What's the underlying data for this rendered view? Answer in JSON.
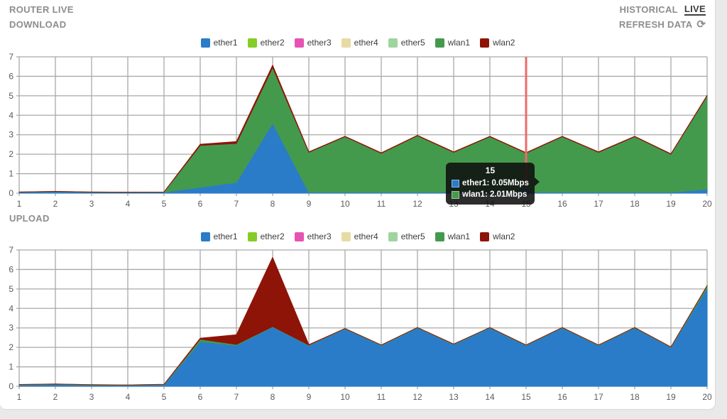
{
  "header": {
    "title": "ROUTER LIVE",
    "mode_historical": "HISTORICAL",
    "mode_live": "LIVE",
    "refresh_label": "REFRESH DATA",
    "refresh_icon": "⟳"
  },
  "sections": {
    "download_label": "DOWNLOAD",
    "upload_label": "UPLOAD"
  },
  "legend": [
    {
      "label": "ether1",
      "color": "#2a7cc8"
    },
    {
      "label": "ether2",
      "color": "#85cc26"
    },
    {
      "label": "ether3",
      "color": "#e753b4"
    },
    {
      "label": "ether4",
      "color": "#e6dba4"
    },
    {
      "label": "ether5",
      "color": "#9fd49e"
    },
    {
      "label": "wlan1",
      "color": "#449a4c"
    },
    {
      "label": "wlan2",
      "color": "#8e1408"
    }
  ],
  "tooltip": {
    "title": "15",
    "rows": [
      {
        "label": "ether1: 0.05Mbps",
        "color": "#2a7cc8"
      },
      {
        "label": "wlan1: 2.01Mbps",
        "color": "#449a4c"
      }
    ]
  },
  "chart_data": [
    {
      "type": "area",
      "stacked": true,
      "title": "DOWNLOAD",
      "xlabel": "",
      "ylabel": "",
      "x": [
        1,
        2,
        3,
        4,
        5,
        6,
        7,
        8,
        9,
        10,
        11,
        12,
        13,
        14,
        15,
        16,
        17,
        18,
        19,
        20
      ],
      "ylim": [
        0,
        7
      ],
      "yticks": [
        0,
        1,
        2,
        3,
        4,
        5,
        6,
        7
      ],
      "grid": true,
      "legend_position": "top-center",
      "series": [
        {
          "name": "ether1",
          "color": "#2a7cc8",
          "values": [
            0.05,
            0.08,
            0.05,
            0.04,
            0.05,
            0.3,
            0.55,
            3.6,
            0.05,
            0.05,
            0.05,
            0.05,
            0.05,
            0.05,
            0.05,
            0.05,
            0.05,
            0.05,
            0.05,
            0.2
          ]
        },
        {
          "name": "ether2",
          "color": "#85cc26",
          "values": [
            0,
            0,
            0,
            0,
            0,
            0,
            0,
            0,
            0,
            0,
            0,
            0,
            0,
            0,
            0,
            0,
            0,
            0,
            0,
            0
          ]
        },
        {
          "name": "ether3",
          "color": "#e753b4",
          "values": [
            0,
            0,
            0,
            0,
            0,
            0,
            0,
            0,
            0,
            0,
            0,
            0,
            0,
            0,
            0,
            0,
            0,
            0,
            0,
            0
          ]
        },
        {
          "name": "ether4",
          "color": "#e6dba4",
          "values": [
            0,
            0,
            0,
            0,
            0,
            0,
            0,
            0,
            0,
            0,
            0,
            0,
            0,
            0,
            0,
            0,
            0,
            0,
            0,
            0
          ]
        },
        {
          "name": "ether5",
          "color": "#9fd49e",
          "values": [
            0,
            0,
            0,
            0,
            0,
            0,
            0,
            0,
            0,
            0,
            0,
            0,
            0,
            0,
            0,
            0,
            0,
            0,
            0,
            0
          ]
        },
        {
          "name": "wlan1",
          "color": "#449a4c",
          "values": [
            0.01,
            0.01,
            0.01,
            0.01,
            0.01,
            2.15,
            2.0,
            2.85,
            2.05,
            2.85,
            2.0,
            2.9,
            2.05,
            2.85,
            2.01,
            2.85,
            2.05,
            2.85,
            1.95,
            4.8
          ]
        },
        {
          "name": "wlan2",
          "color": "#8e1408",
          "values": [
            0,
            0,
            0,
            0,
            0,
            0.06,
            0.1,
            0.12,
            0.02,
            0.02,
            0.02,
            0.02,
            0.02,
            0.02,
            0.02,
            0.02,
            0.02,
            0.02,
            0.02,
            0.02
          ]
        }
      ],
      "crosshair": {
        "x": 15,
        "color": "#ec6b6b",
        "marker_series": "ether1",
        "marker_value": 0.05
      }
    },
    {
      "type": "area",
      "stacked": true,
      "title": "UPLOAD",
      "xlabel": "",
      "ylabel": "",
      "x": [
        1,
        2,
        3,
        4,
        5,
        6,
        7,
        8,
        9,
        10,
        11,
        12,
        13,
        14,
        15,
        16,
        17,
        18,
        19,
        20
      ],
      "ylim": [
        0,
        7
      ],
      "yticks": [
        0,
        1,
        2,
        3,
        4,
        5,
        6,
        7
      ],
      "grid": true,
      "legend_position": "top-center",
      "series": [
        {
          "name": "ether1",
          "color": "#2a7cc8",
          "values": [
            0.07,
            0.1,
            0.06,
            0.05,
            0.08,
            2.3,
            2.1,
            3.05,
            2.1,
            2.95,
            2.1,
            3.0,
            2.15,
            3.0,
            2.1,
            3.0,
            2.1,
            3.0,
            2.0,
            5.05
          ]
        },
        {
          "name": "ether2",
          "color": "#85cc26",
          "values": [
            0,
            0,
            0,
            0,
            0,
            0,
            0,
            0,
            0,
            0,
            0,
            0,
            0,
            0,
            0,
            0,
            0,
            0,
            0,
            0
          ]
        },
        {
          "name": "ether3",
          "color": "#e753b4",
          "values": [
            0,
            0,
            0,
            0,
            0,
            0,
            0,
            0,
            0,
            0,
            0,
            0,
            0,
            0,
            0,
            0,
            0,
            0,
            0,
            0
          ]
        },
        {
          "name": "ether4",
          "color": "#e6dba4",
          "values": [
            0,
            0,
            0,
            0,
            0,
            0,
            0,
            0,
            0,
            0,
            0,
            0,
            0,
            0,
            0,
            0,
            0,
            0,
            0,
            0
          ]
        },
        {
          "name": "ether5",
          "color": "#9fd49e",
          "values": [
            0,
            0,
            0,
            0,
            0,
            0,
            0,
            0,
            0,
            0,
            0,
            0,
            0,
            0,
            0,
            0,
            0,
            0,
            0,
            0
          ]
        },
        {
          "name": "wlan1",
          "color": "#449a4c",
          "values": [
            0.02,
            0.02,
            0.02,
            0.02,
            0.02,
            0.12,
            0.05,
            0.02,
            0.02,
            0.02,
            0.02,
            0.02,
            0.02,
            0.02,
            0.02,
            0.02,
            0.02,
            0.02,
            0.02,
            0.12
          ]
        },
        {
          "name": "wlan2",
          "color": "#8e1408",
          "values": [
            0,
            0,
            0,
            0,
            0,
            0.05,
            0.5,
            3.55,
            0.02,
            0,
            0,
            0,
            0,
            0,
            0,
            0,
            0,
            0,
            0,
            0
          ]
        }
      ]
    }
  ]
}
